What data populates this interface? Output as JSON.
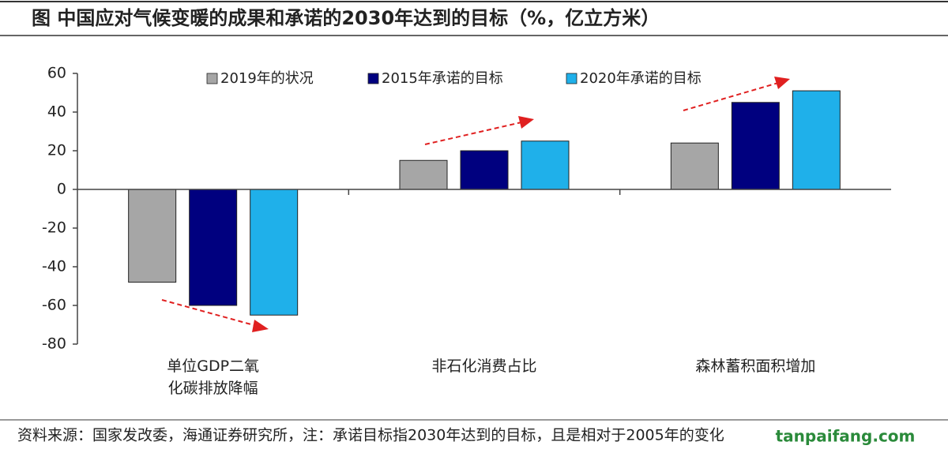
{
  "chart_data": {
    "type": "bar",
    "title": "图  中国应对气候变暖的成果和承诺的2030年达到的目标（%，亿立方米）",
    "categories": [
      "单位GDP二氧化碳排放降幅",
      "非石化消费占比",
      "森林蓄积面积增加"
    ],
    "series": [
      {
        "name": "2019年的状况",
        "color": "#a6a6a6",
        "values": [
          -48,
          15,
          24
        ]
      },
      {
        "name": "2015年承诺的目标",
        "color": "#00007f",
        "values": [
          -60,
          20,
          45
        ]
      },
      {
        "name": "2020年承诺的目标",
        "color": "#1fb0ea",
        "values": [
          -65,
          25,
          51
        ]
      }
    ],
    "ylim": [
      -80,
      60
    ],
    "yticks": [
      -80,
      -60,
      -40,
      -20,
      0,
      20,
      40,
      60
    ],
    "source": "资料来源：国家发改委，海通证券研究所，注：承诺目标指2030年达到的目标，且是相对于2005年的变化",
    "watermark": "tanpaifang.com"
  }
}
